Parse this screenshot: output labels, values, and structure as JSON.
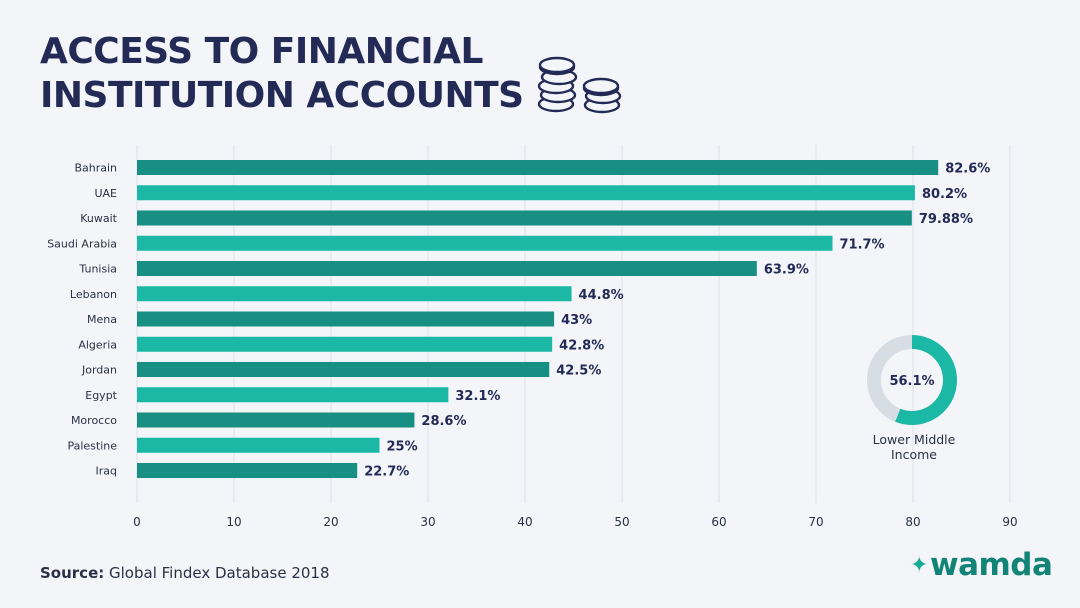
{
  "header": {
    "title_line1": "ACCESS TO FINANCIAL",
    "title_line2": "INSTITUTION ACCOUNTS",
    "icon": "coins-icon"
  },
  "colors": {
    "dark_teal": "#178f82",
    "light_teal": "#1ab8a5",
    "title_navy": "#232a55",
    "grid": "#dde2ea",
    "donut_track": "#d7dde4"
  },
  "chart_data": {
    "type": "bar",
    "orientation": "horizontal",
    "categories": [
      "Bahrain",
      "UAE",
      "Kuwait",
      "Saudi Arabia",
      "Tunisia",
      "Lebanon",
      "Mena",
      "Algeria",
      "Jordan",
      "Egypt",
      "Morocco",
      "Palestine",
      "Iraq"
    ],
    "values": [
      82.6,
      80.2,
      79.88,
      71.7,
      63.9,
      44.8,
      43,
      42.8,
      42.5,
      32.1,
      28.6,
      25,
      22.7
    ],
    "value_labels": [
      "82.6%",
      "80.2%",
      "79.88%",
      "71.7%",
      "63.9%",
      "44.8%",
      "43%",
      "42.8%",
      "42.5%",
      "32.1%",
      "28.6%",
      "25%",
      "22.7%"
    ],
    "xlim": [
      0,
      90
    ],
    "xticks": [
      0,
      10,
      20,
      30,
      40,
      50,
      60,
      70,
      80,
      90
    ],
    "grid": true,
    "bar_colors": [
      "#178f82",
      "#1ab8a5",
      "#178f82",
      "#1ab8a5",
      "#178f82",
      "#1ab8a5",
      "#178f82",
      "#1ab8a5",
      "#178f82",
      "#1ab8a5",
      "#178f82",
      "#1ab8a5",
      "#178f82"
    ],
    "xlabel": "",
    "ylabel": ""
  },
  "donut": {
    "value": 56.1,
    "value_label": "56.1%",
    "label_line1": "Lower Middle",
    "label_line2": "Income"
  },
  "footer": {
    "source_label": "Source:",
    "source_text": " Global Findex Database 2018",
    "brand": "wamda",
    "brand_icon": "sparkle-icon"
  }
}
